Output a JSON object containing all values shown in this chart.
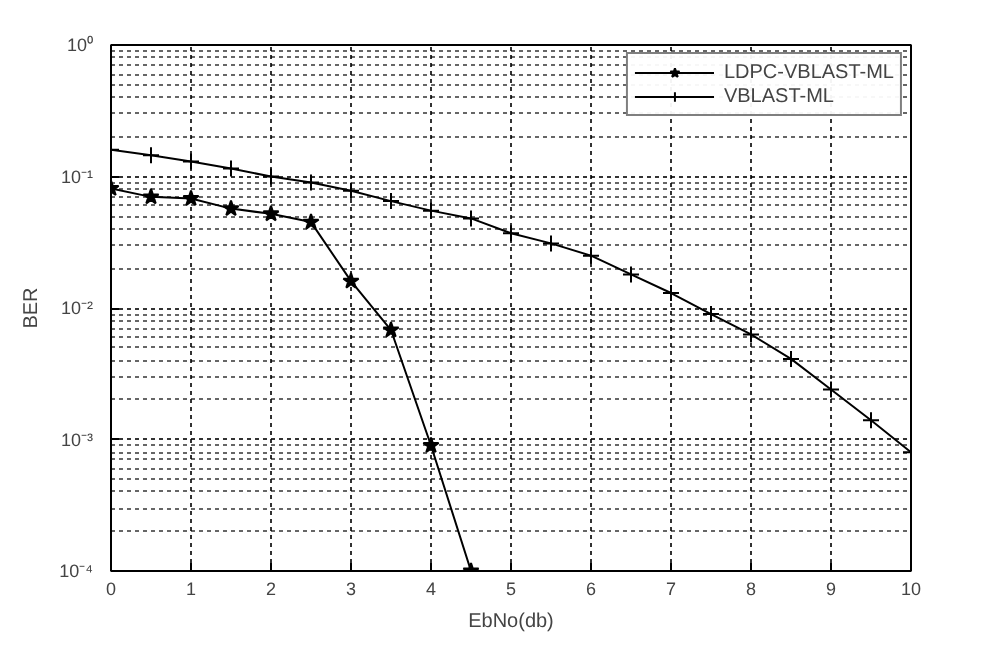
{
  "chart_data": {
    "type": "line",
    "xlabel": "EbNo(db)",
    "ylabel": "BER",
    "log": "y",
    "grid": true,
    "legend": "top right",
    "xlim": [
      0,
      10
    ],
    "xticks": [
      0,
      1,
      2,
      3,
      4,
      5,
      6,
      7,
      8,
      9,
      10
    ],
    "ylim": [
      0.0001,
      1
    ],
    "yticks": [
      {
        "value": 0.0001,
        "label": "10⁻⁴"
      },
      {
        "value": 0.001,
        "label": "10⁻³"
      },
      {
        "value": 0.01,
        "label": "10⁻²"
      },
      {
        "value": 0.1,
        "label": "10⁻¹"
      },
      {
        "value": 1,
        "label": "10⁰"
      }
    ],
    "series": [
      {
        "name": "LDPC-VBLAST-ML",
        "color": "#000000",
        "marker": "star",
        "x": [
          0,
          0.5,
          1,
          1.5,
          2,
          2.5,
          3,
          3.5,
          4,
          4.5
        ],
        "values": [
          0.081,
          0.07,
          0.068,
          0.057,
          0.052,
          0.045,
          0.016,
          0.0068,
          0.0009,
          0.0001
        ]
      },
      {
        "name": "VBLAST-ML",
        "color": "#000000",
        "marker": "cross",
        "x": [
          0,
          0.5,
          1,
          1.5,
          2,
          2.5,
          3,
          3.5,
          4,
          4.5,
          5,
          5.5,
          6,
          6.5,
          7,
          7.5,
          8,
          8.5,
          9,
          9.5,
          10
        ],
        "values": [
          0.16,
          0.145,
          0.13,
          0.115,
          0.1,
          0.09,
          0.078,
          0.065,
          0.055,
          0.048,
          0.037,
          0.031,
          0.025,
          0.018,
          0.013,
          0.009,
          0.0063,
          0.0041,
          0.0024,
          0.0014,
          0.0008
        ]
      }
    ]
  }
}
